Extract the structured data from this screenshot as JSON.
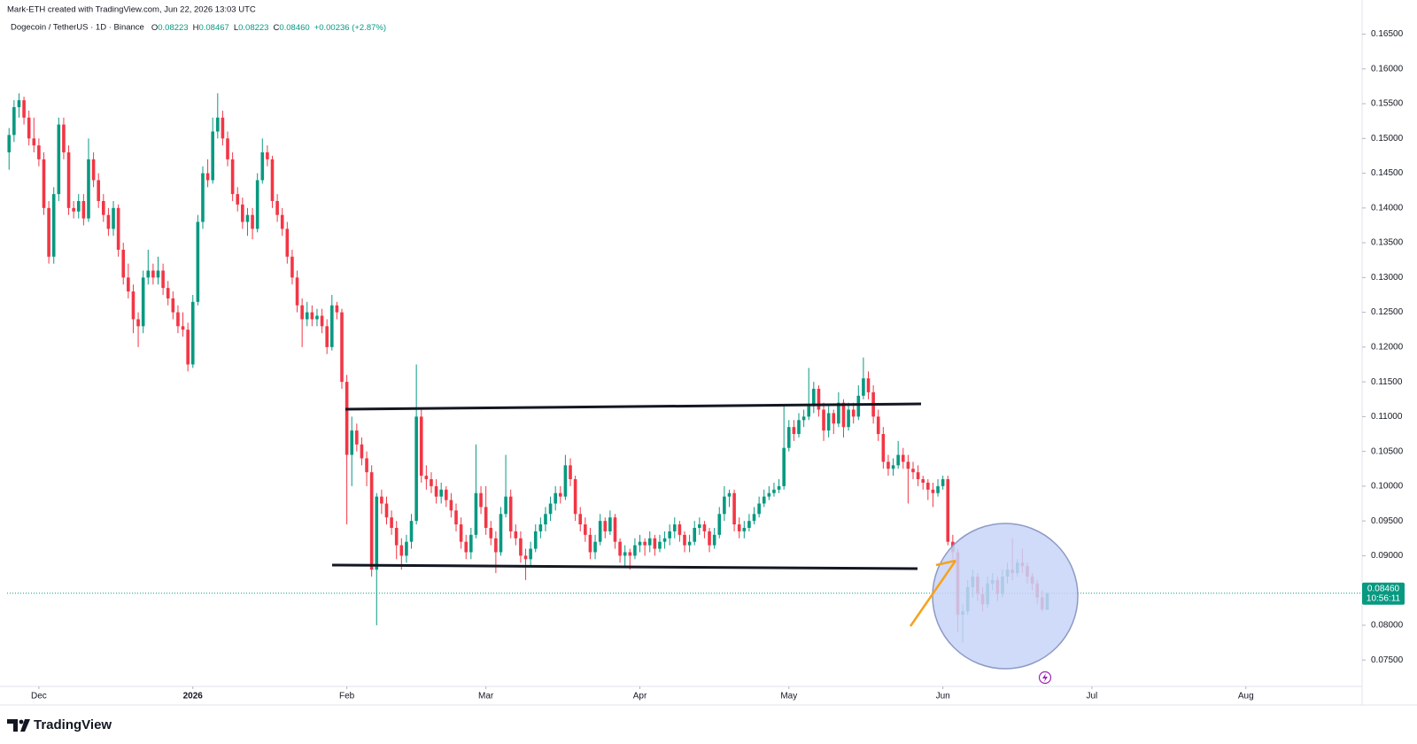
{
  "header": {
    "watermark": "Mark-ETH created with TradingView.com, Jun 22, 2026 13:03 UTC",
    "symbol": "Dogecoin / TetherUS · 1D · Binance",
    "ohlc": [
      {
        "label": "O",
        "value": "0.08223"
      },
      {
        "label": "H",
        "value": "0.08467"
      },
      {
        "label": "L",
        "value": "0.08223"
      },
      {
        "label": "C",
        "value": "0.08460"
      }
    ],
    "change": "+0.00236 (+2.87%)"
  },
  "chart_data": {
    "type": "candlestick",
    "up_color": "#089981",
    "down_color": "#f23645",
    "xlim": [
      -0.4,
      272.4
    ],
    "xticks": [
      {
        "value": 6,
        "label": "Dec"
      },
      {
        "value": 37,
        "label": "2026"
      },
      {
        "value": 68,
        "label": "Feb"
      },
      {
        "value": 96,
        "label": "Mar"
      },
      {
        "value": 127,
        "label": "Apr"
      },
      {
        "value": 157,
        "label": "May"
      },
      {
        "value": 188,
        "label": "Jun"
      },
      {
        "value": 218,
        "label": "Jul"
      },
      {
        "value": 249,
        "label": "Aug"
      }
    ],
    "ylim": [
      0.0712,
      0.168
    ],
    "yticks": [
      {
        "value": 0.075,
        "label": "0.07500"
      },
      {
        "value": 0.08,
        "label": "0.08000"
      },
      {
        "value": 0.085,
        "label": "0.08500"
      },
      {
        "value": 0.09,
        "label": "0.09000"
      },
      {
        "value": 0.095,
        "label": "0.09500"
      },
      {
        "value": 0.1,
        "label": "0.10000"
      },
      {
        "value": 0.105,
        "label": "0.10500"
      },
      {
        "value": 0.11,
        "label": "0.11000"
      },
      {
        "value": 0.115,
        "label": "0.11500"
      },
      {
        "value": 0.12,
        "label": "0.12000"
      },
      {
        "value": 0.125,
        "label": "0.12500"
      },
      {
        "value": 0.13,
        "label": "0.13000"
      },
      {
        "value": 0.135,
        "label": "0.13500"
      },
      {
        "value": 0.14,
        "label": "0.14000"
      },
      {
        "value": 0.145,
        "label": "0.14500"
      },
      {
        "value": 0.15,
        "label": "0.15000"
      },
      {
        "value": 0.155,
        "label": "0.15500"
      },
      {
        "value": 0.16,
        "label": "0.16000"
      },
      {
        "value": 0.165,
        "label": "0.16500"
      }
    ],
    "last_price_label": "0.08460",
    "countdown": "10:56:11",
    "ohlc": [
      [
        0.148,
        0.1515,
        0.1455,
        0.1505
      ],
      [
        0.1505,
        0.1555,
        0.1495,
        0.1545
      ],
      [
        0.1545,
        0.1565,
        0.153,
        0.1555
      ],
      [
        0.1555,
        0.156,
        0.152,
        0.153
      ],
      [
        0.153,
        0.154,
        0.149,
        0.15
      ],
      [
        0.15,
        0.153,
        0.148,
        0.149
      ],
      [
        0.149,
        0.15,
        0.146,
        0.147
      ],
      [
        0.147,
        0.148,
        0.139,
        0.14
      ],
      [
        0.14,
        0.141,
        0.132,
        0.133
      ],
      [
        0.133,
        0.143,
        0.132,
        0.142
      ],
      [
        0.142,
        0.153,
        0.141,
        0.152
      ],
      [
        0.152,
        0.153,
        0.147,
        0.148
      ],
      [
        0.148,
        0.149,
        0.139,
        0.14
      ],
      [
        0.14,
        0.141,
        0.1385,
        0.1395
      ],
      [
        0.1395,
        0.142,
        0.1385,
        0.141
      ],
      [
        0.141,
        0.142,
        0.1375,
        0.1385
      ],
      [
        0.1385,
        0.15,
        0.138,
        0.147
      ],
      [
        0.147,
        0.148,
        0.143,
        0.144
      ],
      [
        0.144,
        0.145,
        0.14,
        0.141
      ],
      [
        0.141,
        0.142,
        0.138,
        0.139
      ],
      [
        0.139,
        0.14,
        0.136,
        0.137
      ],
      [
        0.137,
        0.141,
        0.136,
        0.14
      ],
      [
        0.14,
        0.1405,
        0.133,
        0.134
      ],
      [
        0.134,
        0.135,
        0.129,
        0.13
      ],
      [
        0.13,
        0.132,
        0.127,
        0.128
      ],
      [
        0.128,
        0.129,
        0.122,
        0.124
      ],
      [
        0.124,
        0.125,
        0.12,
        0.123
      ],
      [
        0.123,
        0.131,
        0.122,
        0.13
      ],
      [
        0.13,
        0.134,
        0.129,
        0.131
      ],
      [
        0.131,
        0.132,
        0.129,
        0.13
      ],
      [
        0.13,
        0.133,
        0.129,
        0.131
      ],
      [
        0.131,
        0.132,
        0.1275,
        0.1285
      ],
      [
        0.1285,
        0.1295,
        0.126,
        0.127
      ],
      [
        0.127,
        0.128,
        0.124,
        0.125
      ],
      [
        0.125,
        0.126,
        0.122,
        0.123
      ],
      [
        0.123,
        0.125,
        0.1215,
        0.1225
      ],
      [
        0.1225,
        0.1235,
        0.1165,
        0.1175
      ],
      [
        0.1175,
        0.1275,
        0.117,
        0.1265
      ],
      [
        0.1265,
        0.139,
        0.126,
        0.138
      ],
      [
        0.138,
        0.146,
        0.137,
        0.145
      ],
      [
        0.145,
        0.147,
        0.143,
        0.144
      ],
      [
        0.144,
        0.153,
        0.1435,
        0.151
      ],
      [
        0.151,
        0.1565,
        0.15,
        0.153
      ],
      [
        0.153,
        0.154,
        0.149,
        0.15
      ],
      [
        0.15,
        0.151,
        0.146,
        0.147
      ],
      [
        0.147,
        0.148,
        0.141,
        0.142
      ],
      [
        0.142,
        0.143,
        0.1395,
        0.1405
      ],
      [
        0.1405,
        0.1415,
        0.137,
        0.138
      ],
      [
        0.138,
        0.14,
        0.136,
        0.139
      ],
      [
        0.139,
        0.14,
        0.1355,
        0.137
      ],
      [
        0.137,
        0.145,
        0.1365,
        0.144
      ],
      [
        0.144,
        0.15,
        0.1435,
        0.148
      ],
      [
        0.148,
        0.149,
        0.146,
        0.147
      ],
      [
        0.147,
        0.1475,
        0.14,
        0.141
      ],
      [
        0.141,
        0.142,
        0.138,
        0.139
      ],
      [
        0.139,
        0.14,
        0.136,
        0.137
      ],
      [
        0.137,
        0.138,
        0.132,
        0.133
      ],
      [
        0.133,
        0.134,
        0.129,
        0.13
      ],
      [
        0.13,
        0.131,
        0.125,
        0.126
      ],
      [
        0.126,
        0.127,
        0.12,
        0.124
      ],
      [
        0.124,
        0.1265,
        0.123,
        0.125
      ],
      [
        0.125,
        0.126,
        0.123,
        0.124
      ],
      [
        0.124,
        0.1255,
        0.123,
        0.1245
      ],
      [
        0.1245,
        0.1255,
        0.122,
        0.123
      ],
      [
        0.123,
        0.124,
        0.119,
        0.12
      ],
      [
        0.12,
        0.1275,
        0.1195,
        0.126
      ],
      [
        0.126,
        0.1265,
        0.124,
        0.125
      ],
      [
        0.125,
        0.1255,
        0.114,
        0.115
      ],
      [
        0.115,
        0.116,
        0.0945,
        0.1045
      ],
      [
        0.1045,
        0.11,
        0.1,
        0.108
      ],
      [
        0.108,
        0.109,
        0.105,
        0.106
      ],
      [
        0.106,
        0.107,
        0.103,
        0.104
      ],
      [
        0.104,
        0.105,
        0.1,
        0.102
      ],
      [
        0.102,
        0.103,
        0.087,
        0.088
      ],
      [
        0.088,
        0.099,
        0.08,
        0.0985
      ],
      [
        0.0985,
        0.0995,
        0.096,
        0.0975
      ],
      [
        0.0975,
        0.0985,
        0.0945,
        0.0955
      ],
      [
        0.0955,
        0.0965,
        0.093,
        0.094
      ],
      [
        0.094,
        0.095,
        0.0895,
        0.0915
      ],
      [
        0.0915,
        0.0925,
        0.088,
        0.09
      ],
      [
        0.09,
        0.093,
        0.089,
        0.092
      ],
      [
        0.092,
        0.096,
        0.091,
        0.095
      ],
      [
        0.095,
        0.1175,
        0.0945,
        0.11
      ],
      [
        0.11,
        0.111,
        0.1005,
        0.1015
      ],
      [
        0.1015,
        0.103,
        0.0995,
        0.101
      ],
      [
        0.101,
        0.102,
        0.099,
        0.1
      ],
      [
        0.1,
        0.101,
        0.0975,
        0.0985
      ],
      [
        0.0985,
        0.1005,
        0.0975,
        0.0995
      ],
      [
        0.0995,
        0.1,
        0.097,
        0.098
      ],
      [
        0.098,
        0.099,
        0.0955,
        0.0965
      ],
      [
        0.0965,
        0.0975,
        0.0935,
        0.0945
      ],
      [
        0.0945,
        0.0955,
        0.091,
        0.092
      ],
      [
        0.092,
        0.093,
        0.0895,
        0.0905
      ],
      [
        0.0905,
        0.094,
        0.0895,
        0.093
      ],
      [
        0.093,
        0.106,
        0.0925,
        0.099
      ],
      [
        0.099,
        0.1,
        0.096,
        0.097
      ],
      [
        0.097,
        0.1,
        0.093,
        0.094
      ],
      [
        0.094,
        0.095,
        0.0915,
        0.0925
      ],
      [
        0.0925,
        0.0935,
        0.0875,
        0.0905
      ],
      [
        0.0905,
        0.097,
        0.09,
        0.096
      ],
      [
        0.096,
        0.1045,
        0.0955,
        0.0985
      ],
      [
        0.0985,
        0.0995,
        0.0925,
        0.0935
      ],
      [
        0.0935,
        0.0945,
        0.0915,
        0.0925
      ],
      [
        0.0925,
        0.0935,
        0.089,
        0.09
      ],
      [
        0.09,
        0.091,
        0.0865,
        0.0895
      ],
      [
        0.0895,
        0.092,
        0.0885,
        0.091
      ],
      [
        0.091,
        0.0945,
        0.0905,
        0.0935
      ],
      [
        0.0935,
        0.0955,
        0.0925,
        0.0945
      ],
      [
        0.0945,
        0.097,
        0.0935,
        0.096
      ],
      [
        0.096,
        0.0985,
        0.095,
        0.0975
      ],
      [
        0.0975,
        0.1,
        0.0965,
        0.099
      ],
      [
        0.099,
        0.1,
        0.0975,
        0.0985
      ],
      [
        0.0985,
        0.1045,
        0.098,
        0.103
      ],
      [
        0.103,
        0.104,
        0.1,
        0.101
      ],
      [
        0.101,
        0.1015,
        0.095,
        0.096
      ],
      [
        0.096,
        0.097,
        0.0935,
        0.0945
      ],
      [
        0.0945,
        0.0955,
        0.092,
        0.093
      ],
      [
        0.093,
        0.094,
        0.0895,
        0.0905
      ],
      [
        0.0905,
        0.093,
        0.0895,
        0.092
      ],
      [
        0.092,
        0.096,
        0.0915,
        0.095
      ],
      [
        0.095,
        0.0955,
        0.0925,
        0.0935
      ],
      [
        0.0935,
        0.0965,
        0.093,
        0.0955
      ],
      [
        0.0955,
        0.096,
        0.091,
        0.092
      ],
      [
        0.092,
        0.0925,
        0.089,
        0.09
      ],
      [
        0.09,
        0.0915,
        0.0885,
        0.0905
      ],
      [
        0.0905,
        0.091,
        0.088,
        0.09
      ],
      [
        0.09,
        0.0925,
        0.0895,
        0.0915
      ],
      [
        0.0915,
        0.093,
        0.0905,
        0.092
      ],
      [
        0.092,
        0.0925,
        0.09,
        0.0915
      ],
      [
        0.0915,
        0.0935,
        0.0905,
        0.0925
      ],
      [
        0.0925,
        0.093,
        0.09,
        0.091
      ],
      [
        0.091,
        0.093,
        0.0905,
        0.092
      ],
      [
        0.092,
        0.0935,
        0.091,
        0.0925
      ],
      [
        0.0925,
        0.0945,
        0.0915,
        0.0935
      ],
      [
        0.0935,
        0.0955,
        0.0925,
        0.0945
      ],
      [
        0.0945,
        0.095,
        0.092,
        0.093
      ],
      [
        0.093,
        0.0935,
        0.0905,
        0.0915
      ],
      [
        0.0915,
        0.093,
        0.0905,
        0.092
      ],
      [
        0.092,
        0.095,
        0.0915,
        0.094
      ],
      [
        0.094,
        0.0955,
        0.093,
        0.0945
      ],
      [
        0.0945,
        0.095,
        0.0925,
        0.0935
      ],
      [
        0.0935,
        0.094,
        0.0905,
        0.0915
      ],
      [
        0.0915,
        0.094,
        0.091,
        0.093
      ],
      [
        0.093,
        0.097,
        0.0925,
        0.096
      ],
      [
        0.096,
        0.1,
        0.095,
        0.0985
      ],
      [
        0.0985,
        0.0995,
        0.097,
        0.099
      ],
      [
        0.099,
        0.0995,
        0.0935,
        0.0945
      ],
      [
        0.0945,
        0.0955,
        0.0925,
        0.0935
      ],
      [
        0.0935,
        0.095,
        0.0925,
        0.094
      ],
      [
        0.094,
        0.096,
        0.0935,
        0.095
      ],
      [
        0.095,
        0.097,
        0.0945,
        0.096
      ],
      [
        0.096,
        0.0985,
        0.0955,
        0.0975
      ],
      [
        0.0975,
        0.0995,
        0.097,
        0.0985
      ],
      [
        0.0985,
        0.1,
        0.098,
        0.099
      ],
      [
        0.099,
        0.1005,
        0.0985,
        0.0995
      ],
      [
        0.0995,
        0.101,
        0.099,
        0.1
      ],
      [
        0.1,
        0.1115,
        0.0995,
        0.1055
      ],
      [
        0.1055,
        0.1095,
        0.105,
        0.1085
      ],
      [
        0.1085,
        0.1095,
        0.1065,
        0.1075
      ],
      [
        0.1075,
        0.1105,
        0.107,
        0.1095
      ],
      [
        0.1095,
        0.111,
        0.1085,
        0.11
      ],
      [
        0.11,
        0.117,
        0.1095,
        0.1115
      ],
      [
        0.1115,
        0.115,
        0.1105,
        0.114
      ],
      [
        0.114,
        0.1145,
        0.11,
        0.111
      ],
      [
        0.111,
        0.112,
        0.1065,
        0.108
      ],
      [
        0.108,
        0.1115,
        0.107,
        0.1105
      ],
      [
        0.1105,
        0.111,
        0.1075,
        0.109
      ],
      [
        0.109,
        0.1135,
        0.1085,
        0.112
      ],
      [
        0.112,
        0.1125,
        0.107,
        0.1085
      ],
      [
        0.1085,
        0.112,
        0.108,
        0.111
      ],
      [
        0.111,
        0.112,
        0.109,
        0.11
      ],
      [
        0.11,
        0.1145,
        0.1095,
        0.113
      ],
      [
        0.113,
        0.1185,
        0.1125,
        0.1155
      ],
      [
        0.1155,
        0.1165,
        0.1125,
        0.1135
      ],
      [
        0.1135,
        0.1145,
        0.109,
        0.11
      ],
      [
        0.11,
        0.111,
        0.1065,
        0.1075
      ],
      [
        0.1075,
        0.1085,
        0.1025,
        0.1035
      ],
      [
        0.1035,
        0.1045,
        0.1015,
        0.1025
      ],
      [
        0.1025,
        0.104,
        0.1015,
        0.103
      ],
      [
        0.103,
        0.1065,
        0.1025,
        0.1045
      ],
      [
        0.1045,
        0.1055,
        0.1025,
        0.1035
      ],
      [
        0.1035,
        0.1045,
        0.0975,
        0.1025
      ],
      [
        0.1025,
        0.1035,
        0.101,
        0.102
      ],
      [
        0.102,
        0.103,
        0.1,
        0.101
      ],
      [
        0.101,
        0.1015,
        0.0995,
        0.1005
      ],
      [
        0.1005,
        0.101,
        0.098,
        0.0995
      ],
      [
        0.0995,
        0.1005,
        0.097,
        0.099
      ],
      [
        0.099,
        0.101,
        0.0985,
        0.1
      ],
      [
        0.1,
        0.1015,
        0.0995,
        0.101
      ],
      [
        0.101,
        0.1015,
        0.0915,
        0.092
      ],
      [
        0.092,
        0.093,
        0.0895,
        0.0905
      ],
      [
        0.0905,
        0.091,
        0.079,
        0.0815
      ],
      [
        0.0815,
        0.083,
        0.0775,
        0.082
      ],
      [
        0.082,
        0.0865,
        0.0815,
        0.0855
      ],
      [
        0.0855,
        0.088,
        0.084,
        0.087
      ],
      [
        0.087,
        0.0875,
        0.0835,
        0.0845
      ],
      [
        0.0845,
        0.0855,
        0.082,
        0.083
      ],
      [
        0.083,
        0.087,
        0.0825,
        0.086
      ],
      [
        0.086,
        0.0875,
        0.085,
        0.0865
      ],
      [
        0.0865,
        0.087,
        0.0835,
        0.0845
      ],
      [
        0.0845,
        0.088,
        0.084,
        0.087
      ],
      [
        0.087,
        0.089,
        0.086,
        0.088
      ],
      [
        0.088,
        0.0925,
        0.0865,
        0.0875
      ],
      [
        0.0875,
        0.0895,
        0.087,
        0.089
      ],
      [
        0.089,
        0.091,
        0.0875,
        0.0885
      ],
      [
        0.0885,
        0.089,
        0.086,
        0.087
      ],
      [
        0.087,
        0.0875,
        0.085,
        0.086
      ],
      [
        0.086,
        0.0865,
        0.083,
        0.084
      ],
      [
        0.084,
        0.085,
        0.082,
        0.0823
      ],
      [
        0.08223,
        0.08467,
        0.08223,
        0.0846
      ]
    ]
  },
  "footer": {
    "brand": "TradingView"
  }
}
